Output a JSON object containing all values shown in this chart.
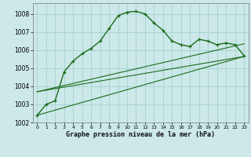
{
  "title": "Graphe pression niveau de la mer (hPa)",
  "bg_color": "#cce8e8",
  "grid_color": "#aad4d4",
  "line_color": "#1a6b1a",
  "x_ticks": [
    0,
    1,
    2,
    3,
    4,
    5,
    6,
    7,
    8,
    9,
    10,
    11,
    12,
    13,
    14,
    15,
    16,
    17,
    18,
    19,
    20,
    21,
    22,
    23
  ],
  "ylim": [
    1002,
    1008.6
  ],
  "yticks": [
    1002,
    1003,
    1004,
    1005,
    1006,
    1007,
    1008
  ],
  "line1_x": [
    0,
    1,
    2,
    3,
    4,
    5,
    6,
    7,
    8,
    9,
    10,
    11,
    12,
    13,
    14,
    15,
    16,
    17,
    18,
    19,
    20,
    21,
    22,
    23
  ],
  "line1_y": [
    1002.4,
    1003.0,
    1003.2,
    1004.8,
    1005.4,
    1005.8,
    1006.1,
    1006.5,
    1007.2,
    1007.9,
    1008.1,
    1008.15,
    1008.0,
    1007.5,
    1007.1,
    1006.5,
    1006.3,
    1006.2,
    1006.6,
    1006.5,
    1006.3,
    1006.4,
    1006.3,
    1005.7
  ],
  "line2_x": [
    0,
    23
  ],
  "line2_y": [
    1003.7,
    1006.35
  ],
  "line3_x": [
    0,
    23
  ],
  "line3_y": [
    1003.7,
    1005.65
  ],
  "line4_x": [
    0,
    23
  ],
  "line4_y": [
    1002.4,
    1005.65
  ]
}
